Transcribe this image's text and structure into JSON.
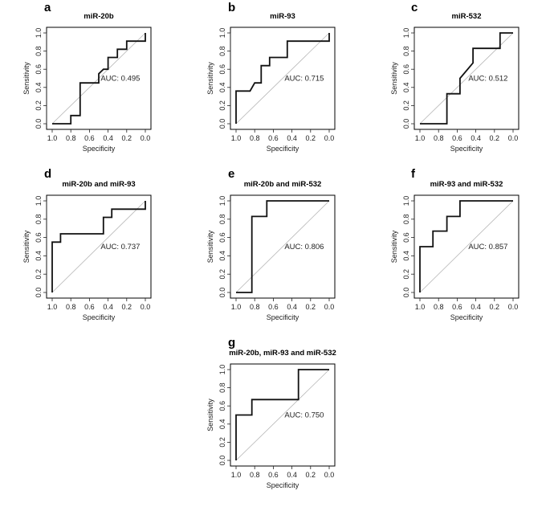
{
  "chart_data": [
    {
      "type": "line",
      "panel": "a",
      "title": "miR-20b",
      "xlabel": "Specificity",
      "ylabel": "Sensitivity",
      "xlim": [
        1.0,
        0.0
      ],
      "ylim": [
        0.0,
        1.0
      ],
      "xticks": [
        "1.0",
        "0.8",
        "0.6",
        "0.4",
        "0.2",
        "0.0"
      ],
      "yticks": [
        "0.0",
        "0.2",
        "0.4",
        "0.6",
        "0.8",
        "1.0"
      ],
      "auc_label": "AUC: 0.495",
      "series": [
        {
          "name": "ROC",
          "specificity": [
            1.0,
            0.8,
            0.8,
            0.7,
            0.7,
            0.5,
            0.5,
            0.45,
            0.4,
            0.4,
            0.3,
            0.3,
            0.2,
            0.2,
            0.0,
            0.0
          ],
          "sensitivity": [
            0.0,
            0.0,
            0.09,
            0.09,
            0.45,
            0.45,
            0.55,
            0.6,
            0.6,
            0.73,
            0.73,
            0.82,
            0.82,
            0.91,
            0.91,
            1.0
          ]
        }
      ]
    },
    {
      "type": "line",
      "panel": "b",
      "title": "miR-93",
      "xlabel": "Specificity",
      "ylabel": "Sensitivity",
      "xlim": [
        1.0,
        0.0
      ],
      "ylim": [
        0.0,
        1.0
      ],
      "xticks": [
        "1.0",
        "0.8",
        "0.6",
        "0.4",
        "0.2",
        "0.0"
      ],
      "yticks": [
        "0.0",
        "0.2",
        "0.4",
        "0.6",
        "0.8",
        "1.0"
      ],
      "auc_label": "AUC: 0.715",
      "series": [
        {
          "name": "ROC",
          "specificity": [
            1.0,
            1.0,
            0.85,
            0.8,
            0.73,
            0.73,
            0.64,
            0.64,
            0.45,
            0.45,
            0.0,
            0.0
          ],
          "sensitivity": [
            0.0,
            0.36,
            0.36,
            0.45,
            0.45,
            0.64,
            0.64,
            0.73,
            0.73,
            0.91,
            0.91,
            1.0
          ]
        }
      ]
    },
    {
      "type": "line",
      "panel": "c",
      "title": "miR-532",
      "xlabel": "Specificity",
      "ylabel": "Sensitivity",
      "xlim": [
        1.0,
        0.0
      ],
      "ylim": [
        0.0,
        1.0
      ],
      "xticks": [
        "1.0",
        "0.8",
        "0.6",
        "0.4",
        "0.2",
        "0.0"
      ],
      "yticks": [
        "0.0",
        "0.2",
        "0.4",
        "0.6",
        "0.8",
        "1.0"
      ],
      "auc_label": "AUC: 0.512",
      "series": [
        {
          "name": "ROC",
          "specificity": [
            1.0,
            0.71,
            0.71,
            0.57,
            0.57,
            0.43,
            0.43,
            0.14,
            0.14,
            0.0
          ],
          "sensitivity": [
            0.0,
            0.0,
            0.33,
            0.33,
            0.5,
            0.67,
            0.83,
            0.83,
            1.0,
            1.0
          ]
        }
      ]
    },
    {
      "type": "line",
      "panel": "d",
      "title": "miR-20b and miR-93",
      "xlabel": "Specificity",
      "ylabel": "Sensitivity",
      "xlim": [
        1.0,
        0.0
      ],
      "ylim": [
        0.0,
        1.0
      ],
      "xticks": [
        "1.0",
        "0.8",
        "0.6",
        "0.4",
        "0.2",
        "0.0"
      ],
      "yticks": [
        "0.0",
        "0.2",
        "0.4",
        "0.6",
        "0.8",
        "1.0"
      ],
      "auc_label": "AUC: 0.737",
      "series": [
        {
          "name": "ROC",
          "specificity": [
            1.0,
            1.0,
            0.91,
            0.91,
            0.45,
            0.45,
            0.36,
            0.36,
            0.0,
            0.0
          ],
          "sensitivity": [
            0.0,
            0.55,
            0.55,
            0.64,
            0.64,
            0.82,
            0.82,
            0.91,
            0.91,
            1.0
          ]
        }
      ]
    },
    {
      "type": "line",
      "panel": "e",
      "title": "miR-20b and miR-532",
      "xlabel": "Specificity",
      "ylabel": "Sensitivity",
      "xlim": [
        1.0,
        0.0
      ],
      "ylim": [
        0.0,
        1.0
      ],
      "xticks": [
        "1.0",
        "0.8",
        "0.6",
        "0.4",
        "0.2",
        "0.0"
      ],
      "yticks": [
        "0.0",
        "0.2",
        "0.4",
        "0.6",
        "0.8",
        "1.0"
      ],
      "auc_label": "AUC: 0.806",
      "series": [
        {
          "name": "ROC",
          "specificity": [
            1.0,
            0.83,
            0.83,
            0.67,
            0.67,
            0.0
          ],
          "sensitivity": [
            0.0,
            0.0,
            0.83,
            0.83,
            1.0,
            1.0
          ]
        }
      ]
    },
    {
      "type": "line",
      "panel": "f",
      "title": "miR-93 and miR-532",
      "xlabel": "Specificity",
      "ylabel": "Sensitivity",
      "xlim": [
        1.0,
        0.0
      ],
      "ylim": [
        0.0,
        1.0
      ],
      "xticks": [
        "1.0",
        "0.8",
        "0.6",
        "0.4",
        "0.2",
        "0.0"
      ],
      "yticks": [
        "0.0",
        "0.2",
        "0.4",
        "0.6",
        "0.8",
        "1.0"
      ],
      "auc_label": "AUC: 0.857",
      "series": [
        {
          "name": "ROC",
          "specificity": [
            1.0,
            1.0,
            0.86,
            0.86,
            0.71,
            0.71,
            0.57,
            0.57,
            0.0
          ],
          "sensitivity": [
            0.0,
            0.5,
            0.5,
            0.67,
            0.67,
            0.83,
            0.83,
            1.0,
            1.0
          ]
        }
      ]
    },
    {
      "type": "line",
      "panel": "g",
      "title": "miR-20b, miR-93 and miR-532",
      "xlabel": "Specificity",
      "ylabel": "Sensitivity",
      "xlim": [
        1.0,
        0.0
      ],
      "ylim": [
        0.0,
        1.0
      ],
      "xticks": [
        "1.0",
        "0.8",
        "0.6",
        "0.4",
        "0.2",
        "0.0"
      ],
      "yticks": [
        "0.0",
        "0.2",
        "0.4",
        "0.6",
        "0.8",
        "1.0"
      ],
      "auc_label": "AUC: 0.750",
      "series": [
        {
          "name": "ROC",
          "specificity": [
            1.0,
            1.0,
            0.83,
            0.83,
            0.33,
            0.33,
            0.0
          ],
          "sensitivity": [
            0.0,
            0.5,
            0.5,
            0.67,
            0.67,
            1.0,
            1.0
          ]
        }
      ]
    }
  ]
}
